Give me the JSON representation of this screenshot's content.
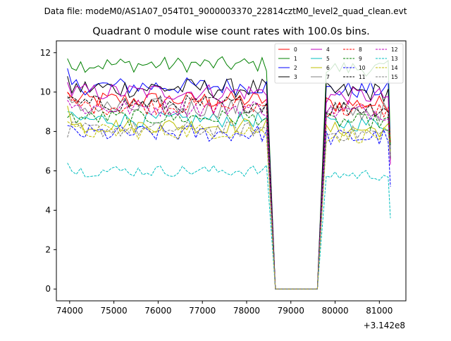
{
  "chart_data": {
    "type": "line",
    "suptitle": "Data file: modeM0/AS1A07_054T01_9000003370_22814cztM0_level2_quad_clean.evt",
    "title": "Quadrant 0 module wise count rates with 100.0s bins.",
    "xlabel": "",
    "ylabel": "",
    "x_offset_label": "+3.142e8",
    "xlim": [
      73700,
      81600
    ],
    "ylim": [
      -0.6,
      12.6
    ],
    "x_ticks": [
      74000,
      75000,
      76000,
      77000,
      78000,
      79000,
      80000,
      81000
    ],
    "x_tick_labels": [
      "74000",
      "75000",
      "76000",
      "77000",
      "78000",
      "79000",
      "80000",
      "81000"
    ],
    "y_ticks": [
      0,
      2,
      4,
      6,
      8,
      10,
      12
    ],
    "y_tick_labels": [
      "0",
      "2",
      "4",
      "6",
      "8",
      "10",
      "12"
    ],
    "grid": false,
    "legend_position": "upper-right",
    "legend_columns": 4,
    "x_range_on": [
      73950,
      81250
    ],
    "gap": {
      "drop_start": 78500,
      "zero_start": 78650,
      "zero_end": 79600,
      "rise_end": 79800
    },
    "bin_width_s": 100,
    "series": [
      {
        "name": "0",
        "color": "#ff0000",
        "dash": "solid",
        "mean": 9.6,
        "amp": 0.45,
        "start": 10.0,
        "end": 7.4
      },
      {
        "name": "1",
        "color": "#008000",
        "dash": "solid",
        "mean": 11.4,
        "amp": 0.4,
        "start": 11.7,
        "end": 7.3
      },
      {
        "name": "2",
        "color": "#0000ff",
        "dash": "solid",
        "mean": 10.3,
        "amp": 0.45,
        "start": 11.2,
        "end": 7.0
      },
      {
        "name": "3",
        "color": "#000000",
        "dash": "solid",
        "mean": 10.2,
        "amp": 0.5,
        "start": 10.8,
        "end": 6.6
      },
      {
        "name": "4",
        "color": "#bf00bf",
        "dash": "solid",
        "mean": 10.0,
        "amp": 0.45,
        "start": 10.5,
        "end": 6.4
      },
      {
        "name": "5",
        "color": "#00bfbf",
        "dash": "solid",
        "mean": 8.6,
        "amp": 0.4,
        "start": 9.0,
        "end": 7.0
      },
      {
        "name": "6",
        "color": "#bfbf00",
        "dash": "solid",
        "mean": 8.3,
        "amp": 0.4,
        "start": 9.3,
        "end": 7.6
      },
      {
        "name": "7",
        "color": "#808080",
        "dash": "solid",
        "mean": 9.2,
        "amp": 0.5,
        "start": 9.8,
        "end": 6.8
      },
      {
        "name": "8",
        "color": "#ff0000",
        "dash": "dashed",
        "mean": 9.3,
        "amp": 0.45,
        "start": 10.0,
        "end": 7.4
      },
      {
        "name": "9",
        "color": "#008000",
        "dash": "dashed",
        "mean": 8.7,
        "amp": 0.4,
        "start": 8.7,
        "end": 7.3
      },
      {
        "name": "10",
        "color": "#0000ff",
        "dash": "dashed",
        "mean": 7.9,
        "amp": 0.45,
        "start": 8.3,
        "end": 5.2
      },
      {
        "name": "11",
        "color": "#000000",
        "dash": "dashed",
        "mean": 9.4,
        "amp": 0.45,
        "start": 9.7,
        "end": 6.6
      },
      {
        "name": "12",
        "color": "#bf00bf",
        "dash": "dashed",
        "mean": 9.2,
        "amp": 0.45,
        "start": 9.6,
        "end": 6.3
      },
      {
        "name": "13",
        "color": "#00bfbf",
        "dash": "dashed",
        "mean": 6.0,
        "amp": 0.3,
        "start": 6.4,
        "end": 3.6
      },
      {
        "name": "14",
        "color": "#bfbf00",
        "dash": "dashed",
        "mean": 8.0,
        "amp": 0.4,
        "start": 8.5,
        "end": 7.0
      },
      {
        "name": "15",
        "color": "#808080",
        "dash": "dashed",
        "mean": 8.1,
        "amp": 0.4,
        "start": 7.7,
        "end": 6.7
      }
    ]
  }
}
